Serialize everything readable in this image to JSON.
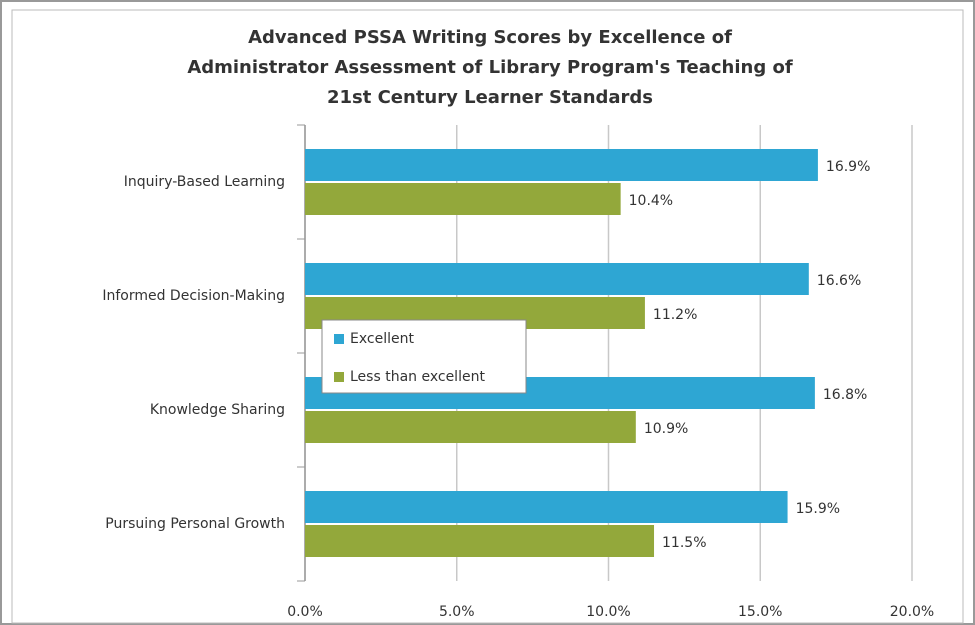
{
  "chart_data": {
    "type": "bar",
    "orientation": "horizontal",
    "title": [
      "Advanced PSSA Writing Scores by Excellence of",
      "Administrator Assessment of Library Program's Teaching of",
      "21st Century Learner Standards"
    ],
    "categories": [
      "Inquiry-Based Learning",
      "Informed Decision-Making",
      "Knowledge Sharing",
      "Pursuing Personal Growth"
    ],
    "series": [
      {
        "name": "Excellent",
        "color": "#2ea6d3",
        "values": [
          16.9,
          16.6,
          16.8,
          15.9
        ],
        "value_labels": [
          "16.9%",
          "16.6%",
          "16.8%",
          "15.9%"
        ]
      },
      {
        "name": "Less than excellent",
        "color": "#93a83b",
        "values": [
          10.4,
          11.2,
          10.9,
          11.5
        ],
        "value_labels": [
          "10.4%",
          "11.2%",
          "10.9%",
          "11.5%"
        ]
      }
    ],
    "xlim": [
      0,
      20
    ],
    "xticks": [
      {
        "value": 0,
        "label": "0.0%"
      },
      {
        "value": 5,
        "label": "5.0%"
      },
      {
        "value": 10,
        "label": "10.0%"
      },
      {
        "value": 15,
        "label": "15.0%"
      },
      {
        "value": 20,
        "label": "20.0%"
      }
    ],
    "grid": true,
    "legend": "center-left"
  }
}
